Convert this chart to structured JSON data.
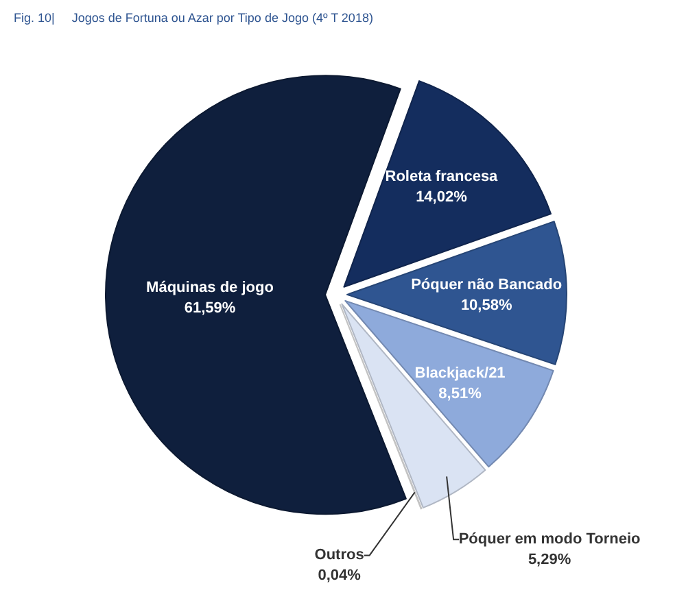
{
  "chart_data": {
    "type": "pie",
    "title": "Fig. 10|     Jogos de Fortuna ou Azar por Tipo de Jogo (4º T 2018)",
    "categories": [
      "Roleta francesa",
      "Póquer não Bancado",
      "Blackjack/21",
      "Póquer em modo Torneio",
      "Outros",
      "Máquinas de jogo"
    ],
    "values": [
      14.02,
      10.58,
      8.51,
      5.29,
      0.04,
      61.59
    ],
    "value_labels": [
      "14,02%",
      "10,58%",
      "8,51%",
      "5,29%",
      "0,04%",
      "61,59%"
    ],
    "colors": [
      "#142d5e",
      "#2f5591",
      "#8eaadb",
      "#dae3f3",
      "#f2f2f2",
      "#0f1f3d"
    ]
  }
}
